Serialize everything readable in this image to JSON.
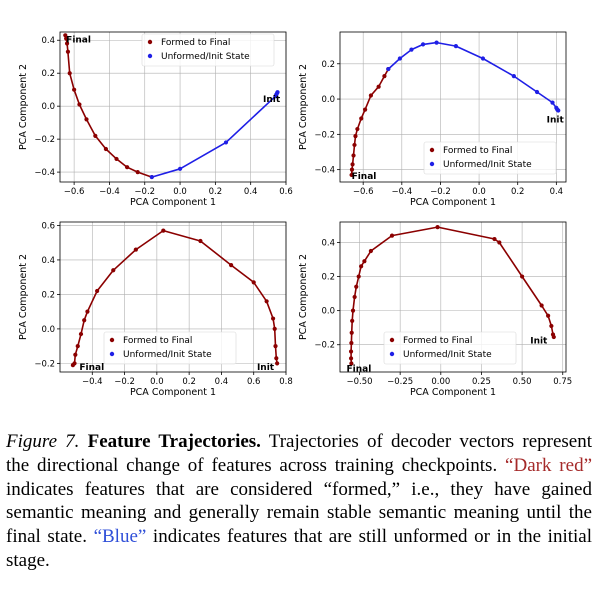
{
  "colors": {
    "formed": "#8b0000",
    "unformed": "#1f1fe6",
    "grid": "#b0b0b0"
  },
  "chart_data": [
    {
      "type": "line",
      "xlabel": "PCA Component 1",
      "ylabel": "PCA Component 2",
      "xlim": [
        -0.68,
        0.6
      ],
      "ylim": [
        -0.46,
        0.45
      ],
      "xticks": [
        -0.6,
        -0.4,
        -0.2,
        0.0,
        0.2,
        0.4,
        0.6
      ],
      "xticklabels": [
        "−0.6",
        "−0.4",
        "−0.2",
        "0.0",
        "0.2",
        "0.4",
        "0.6"
      ],
      "yticks": [
        -0.4,
        -0.2,
        0.0,
        0.2,
        0.4
      ],
      "yticklabels": [
        "−0.4",
        "−0.2",
        "0.0",
        "0.2",
        "0.4"
      ],
      "grid": true,
      "legend": {
        "position": "top-right",
        "entries": [
          "Formed to Final",
          "Unformed/Init State"
        ]
      },
      "series": [
        {
          "name": "Formed to Final",
          "color": "formed",
          "points": [
            [
              -0.65,
              0.43
            ],
            [
              -0.645,
              0.41
            ],
            [
              -0.64,
              0.38
            ],
            [
              -0.635,
              0.33
            ],
            [
              -0.625,
              0.2
            ],
            [
              -0.6,
              0.1
            ],
            [
              -0.57,
              0.01
            ],
            [
              -0.53,
              -0.08
            ],
            [
              -0.48,
              -0.18
            ],
            [
              -0.42,
              -0.26
            ],
            [
              -0.36,
              -0.32
            ],
            [
              -0.3,
              -0.37
            ],
            [
              -0.24,
              -0.4
            ],
            [
              -0.16,
              -0.43
            ]
          ]
        },
        {
          "name": "Unformed/Init State",
          "color": "unformed",
          "points": [
            [
              -0.16,
              -0.43
            ],
            [
              0.0,
              -0.38
            ],
            [
              0.26,
              -0.22
            ],
            [
              0.54,
              0.06
            ],
            [
              0.545,
              0.07
            ],
            [
              0.55,
              0.08
            ],
            [
              0.552,
              0.085
            ]
          ]
        }
      ],
      "annotations": [
        {
          "text": "Final",
          "x": -0.645,
          "y": 0.41
        },
        {
          "text": "Init",
          "x": 0.47,
          "y": 0.05
        }
      ]
    },
    {
      "type": "line",
      "xlabel": "PCA Component 1",
      "ylabel": "PCA Component 2",
      "xlim": [
        -0.72,
        0.45
      ],
      "ylim": [
        -0.47,
        0.38
      ],
      "xticks": [
        -0.6,
        -0.4,
        -0.2,
        0.0,
        0.2,
        0.4
      ],
      "xticklabels": [
        "−0.6",
        "−0.4",
        "−0.2",
        "0.0",
        "0.2",
        "0.4"
      ],
      "yticks": [
        -0.4,
        -0.2,
        0.0,
        0.2
      ],
      "yticklabels": [
        "−0.4",
        "−0.2",
        "0.0",
        "0.2"
      ],
      "grid": true,
      "legend": {
        "position": "bottom-right",
        "entries": [
          "Formed to Final",
          "Unformed/Init State"
        ]
      },
      "series": [
        {
          "name": "Formed to Final",
          "color": "formed",
          "points": [
            [
              -0.66,
              -0.43
            ],
            [
              -0.658,
              -0.4
            ],
            [
              -0.655,
              -0.37
            ],
            [
              -0.65,
              -0.32
            ],
            [
              -0.645,
              -0.26
            ],
            [
              -0.64,
              -0.21
            ],
            [
              -0.63,
              -0.17
            ],
            [
              -0.61,
              -0.11
            ],
            [
              -0.59,
              -0.06
            ],
            [
              -0.56,
              0.02
            ],
            [
              -0.52,
              0.07
            ],
            [
              -0.49,
              0.13
            ],
            [
              -0.47,
              0.17
            ]
          ]
        },
        {
          "name": "Unformed/Init State",
          "color": "unformed",
          "points": [
            [
              -0.47,
              0.17
            ],
            [
              -0.41,
              0.23
            ],
            [
              -0.35,
              0.28
            ],
            [
              -0.29,
              0.31
            ],
            [
              -0.22,
              0.32
            ],
            [
              -0.12,
              0.3
            ],
            [
              0.02,
              0.23
            ],
            [
              0.18,
              0.13
            ],
            [
              0.3,
              0.04
            ],
            [
              0.38,
              -0.02
            ],
            [
              0.4,
              -0.05
            ],
            [
              0.405,
              -0.06
            ],
            [
              0.41,
              -0.065
            ]
          ]
        }
      ],
      "annotations": [
        {
          "text": "Final",
          "x": -0.66,
          "y": -0.43
        },
        {
          "text": "Init",
          "x": 0.35,
          "y": -0.11
        }
      ]
    },
    {
      "type": "line",
      "xlabel": "PCA Component 1",
      "ylabel": "PCA Component 2",
      "xlim": [
        -0.6,
        0.8
      ],
      "ylim": [
        -0.25,
        0.62
      ],
      "xticks": [
        -0.4,
        -0.2,
        0.0,
        0.2,
        0.4,
        0.6,
        0.8
      ],
      "xticklabels": [
        "−0.4",
        "−0.2",
        "0.0",
        "0.2",
        "0.4",
        "0.6",
        "0.8"
      ],
      "yticks": [
        -0.2,
        0.0,
        0.2,
        0.4,
        0.6
      ],
      "yticklabels": [
        "−0.2",
        "0.0",
        "0.2",
        "0.4",
        "0.6"
      ],
      "grid": true,
      "legend": {
        "position": "bottom-center",
        "entries": [
          "Formed to Final",
          "Unformed/Init State"
        ]
      },
      "series": [
        {
          "name": "Formed to Final",
          "color": "formed",
          "points": [
            [
              -0.52,
              -0.21
            ],
            [
              -0.51,
              -0.2
            ],
            [
              -0.505,
              -0.15
            ],
            [
              -0.49,
              -0.1
            ],
            [
              -0.47,
              -0.03
            ],
            [
              -0.45,
              0.05
            ],
            [
              -0.43,
              0.1
            ],
            [
              -0.37,
              0.22
            ],
            [
              -0.27,
              0.34
            ],
            [
              -0.13,
              0.46
            ],
            [
              0.04,
              0.57
            ],
            [
              0.27,
              0.51
            ],
            [
              0.46,
              0.37
            ],
            [
              0.6,
              0.27
            ],
            [
              0.68,
              0.16
            ],
            [
              0.72,
              0.06
            ],
            [
              0.73,
              0.0
            ],
            [
              0.735,
              -0.1
            ],
            [
              0.74,
              -0.17
            ],
            [
              0.745,
              -0.2
            ]
          ]
        }
      ],
      "annotations": [
        {
          "text": "Final",
          "x": -0.48,
          "y": -0.215
        },
        {
          "text": "Init",
          "x": 0.62,
          "y": -0.215
        }
      ]
    },
    {
      "type": "line",
      "xlabel": "PCA Component 1",
      "ylabel": "PCA Component 2",
      "xlim": [
        -0.62,
        0.77
      ],
      "ylim": [
        -0.36,
        0.52
      ],
      "xticks": [
        -0.5,
        -0.25,
        0.0,
        0.25,
        0.5,
        0.75
      ],
      "xticklabels": [
        "−0.50",
        "−0.25",
        "0.00",
        "0.25",
        "0.50",
        "0.75"
      ],
      "yticks": [
        -0.2,
        0.0,
        0.2,
        0.4
      ],
      "yticklabels": [
        "−0.2",
        "0.0",
        "0.2",
        "0.4"
      ],
      "grid": true,
      "legend": {
        "position": "bottom-center",
        "entries": [
          "Formed to Final",
          "Unformed/Init State"
        ]
      },
      "series": [
        {
          "name": "Formed to Final",
          "color": "formed",
          "points": [
            [
              -0.55,
              -0.31
            ],
            [
              -0.552,
              -0.28
            ],
            [
              -0.552,
              -0.24
            ],
            [
              -0.55,
              -0.19
            ],
            [
              -0.548,
              -0.13
            ],
            [
              -0.545,
              -0.06
            ],
            [
              -0.54,
              0.0
            ],
            [
              -0.53,
              0.08
            ],
            [
              -0.52,
              0.14
            ],
            [
              -0.505,
              0.2
            ],
            [
              -0.49,
              0.26
            ],
            [
              -0.47,
              0.29
            ],
            [
              -0.43,
              0.35
            ],
            [
              -0.3,
              0.44
            ],
            [
              -0.02,
              0.49
            ],
            [
              0.33,
              0.42
            ],
            [
              0.36,
              0.4
            ],
            [
              0.5,
              0.2
            ],
            [
              0.62,
              0.03
            ],
            [
              0.66,
              -0.03
            ],
            [
              0.68,
              -0.09
            ],
            [
              0.69,
              -0.14
            ],
            [
              0.695,
              -0.155
            ]
          ]
        }
      ],
      "annotations": [
        {
          "text": "Final",
          "x": -0.58,
          "y": -0.335
        },
        {
          "text": "Init",
          "x": 0.55,
          "y": -0.17
        }
      ]
    }
  ],
  "caption": {
    "figure_label": "Figure 7.",
    "title": "Feature Trajectories.",
    "text_1": " Trajectories of decoder vectors represent the directional change of features across training checkpoints. ",
    "dark_red": "“Dark red”",
    "text_2": " indicates features that are considered “formed,” i.e., they have gained semantic meaning and generally remain stable semantic meaning until the final state. ",
    "blue": "“Blue”",
    "text_3": " indicates features that are still unformed or in the initial stage."
  }
}
